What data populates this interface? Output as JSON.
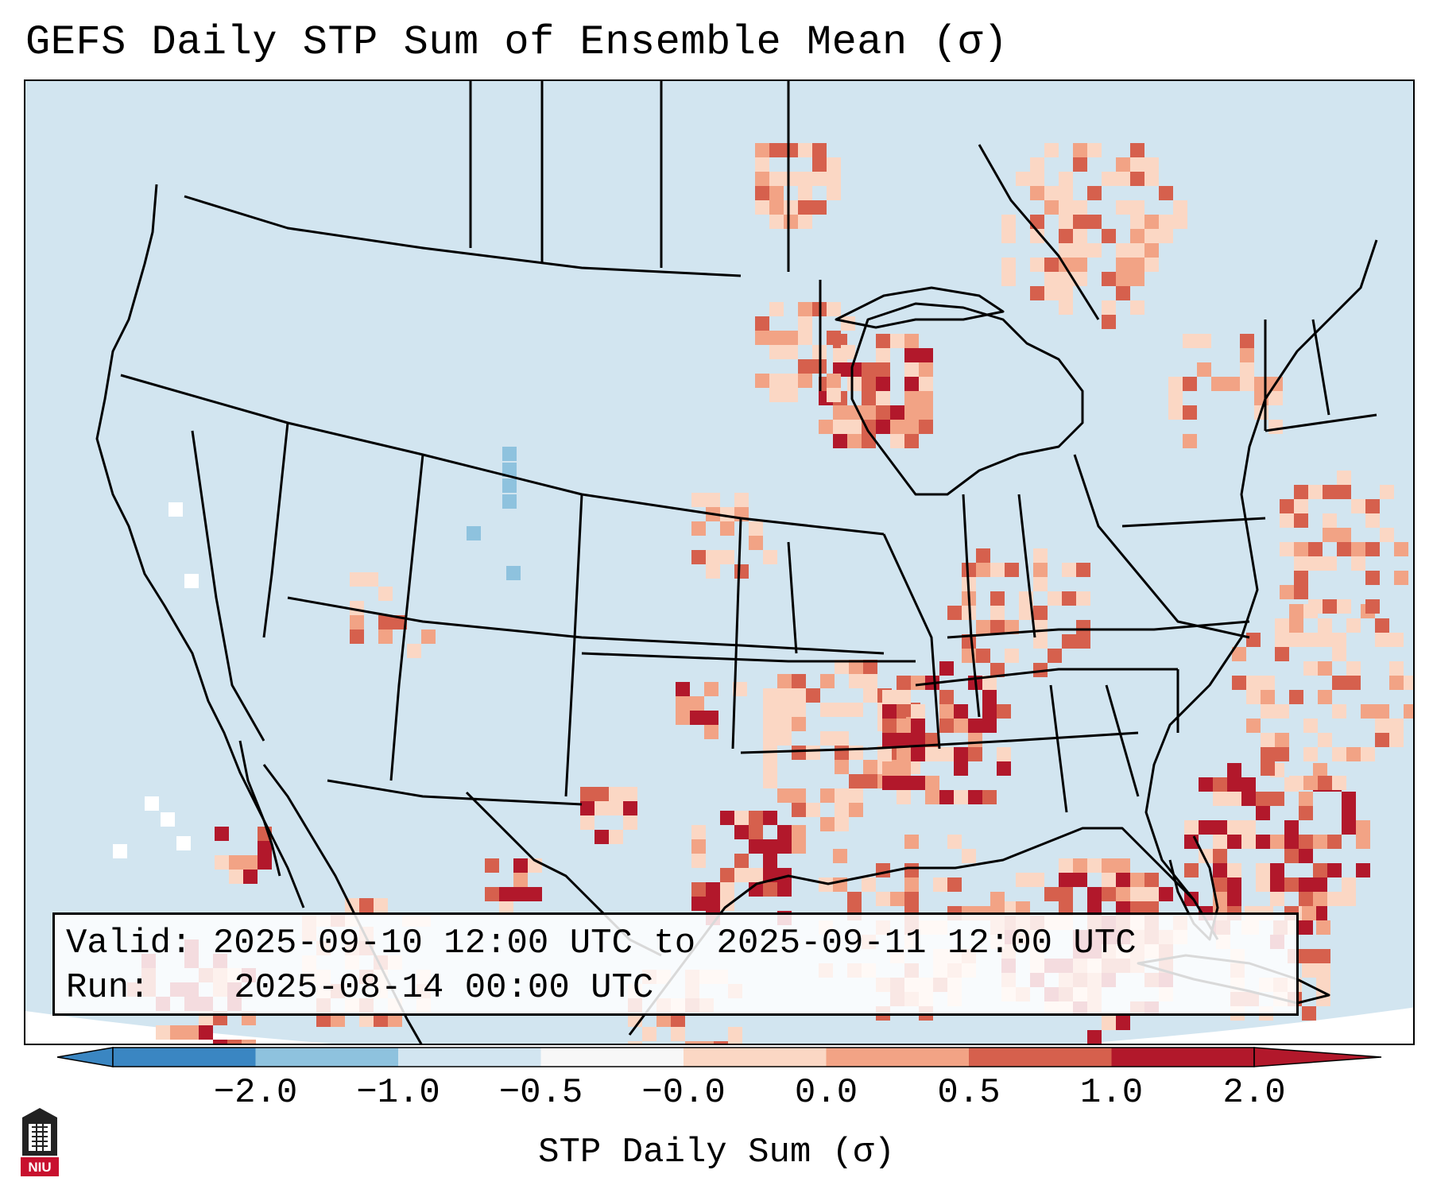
{
  "title": "GEFS Daily STP Sum of Ensemble Mean (σ)",
  "info": {
    "valid_label": "Valid:",
    "valid_value": "2025-09-10 12:00 UTC to 2025-09-11 12:00 UTC",
    "run_label": "Run:",
    "run_value": "2025-08-14 00:00 UTC"
  },
  "colorbar": {
    "label": "STP Daily Sum (σ)",
    "ticks": [
      "−2.0",
      "−1.0",
      "−0.5",
      "−0.0",
      "0.0",
      "0.5",
      "1.0",
      "2.0"
    ],
    "segment_colors": [
      "#3a86c2",
      "#8ec2de",
      "#d2e5f0",
      "#f7f7f7",
      "#fbd7c4",
      "#f2a385",
      "#d6604d",
      "#b2182b"
    ],
    "extend": "both"
  },
  "colors": {
    "ocean_and_land_base": "#d2e5f0",
    "white_bin": "#ffffff",
    "light_red": "#fbd7c4",
    "medium_red": "#f2a385",
    "red": "#d6604d",
    "dark_red": "#b2182b",
    "light_blue": "#8ec2de",
    "mid_blue": "#3a86c2"
  },
  "logo": {
    "text": "NIU",
    "icon": "university-tower-icon"
  }
}
